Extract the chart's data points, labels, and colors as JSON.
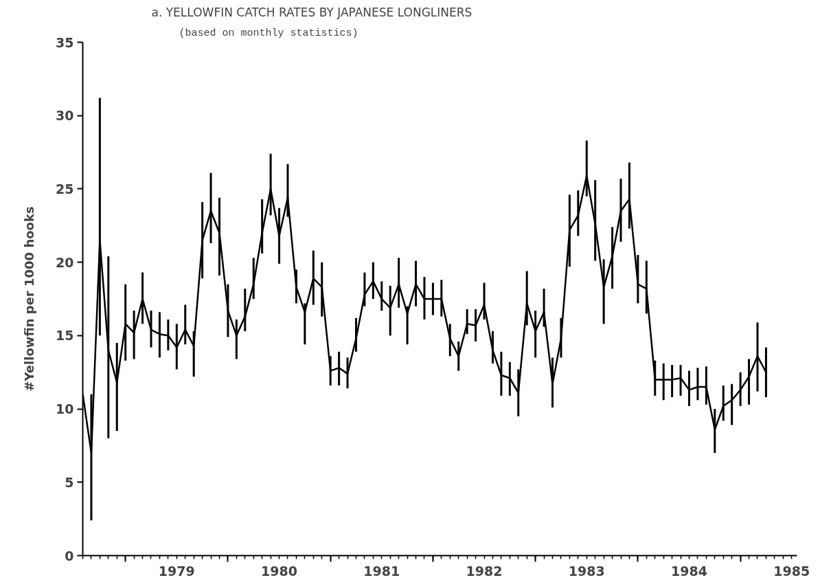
{
  "chart_data": {
    "type": "line",
    "title": "a.   YELLOWFIN CATCH RATES BY JAPANESE LONGLINERS",
    "subtitle": "(based on monthly statistics)",
    "ylabel": "#Yellowfin per 1000 hooks",
    "color": "#000000",
    "line_style": "solid",
    "x": [
      "1978-08",
      "1978-09",
      "1978-10",
      "1978-11",
      "1978-12",
      "1979-01",
      "1979-02",
      "1979-03",
      "1979-04",
      "1979-05",
      "1979-06",
      "1979-07",
      "1979-08",
      "1979-09",
      "1979-10",
      "1979-11",
      "1979-12",
      "1980-01",
      "1980-02",
      "1980-03",
      "1980-04",
      "1980-05",
      "1980-06",
      "1980-07",
      "1980-08",
      "1980-09",
      "1980-10",
      "1980-11",
      "1980-12",
      "1981-01",
      "1981-02",
      "1981-03",
      "1981-04",
      "1981-05",
      "1981-06",
      "1981-07",
      "1981-08",
      "1981-09",
      "1981-10",
      "1981-11",
      "1981-12",
      "1982-01",
      "1982-02",
      "1982-03",
      "1982-04",
      "1982-05",
      "1982-06",
      "1982-07",
      "1982-08",
      "1982-09",
      "1982-10",
      "1982-11",
      "1982-12",
      "1983-01",
      "1983-02",
      "1983-03",
      "1983-04",
      "1983-05",
      "1983-06",
      "1983-07",
      "1983-08",
      "1983-09",
      "1983-10",
      "1983-11",
      "1983-12",
      "1984-01",
      "1984-02",
      "1984-03",
      "1984-04",
      "1984-05",
      "1984-06",
      "1984-07",
      "1984-08",
      "1984-09",
      "1984-10",
      "1984-11",
      "1984-12",
      "1985-01",
      "1985-02",
      "1985-03",
      "1985-04"
    ],
    "values": [
      11.0,
      7.0,
      21.5,
      14.0,
      11.8,
      15.8,
      15.2,
      17.5,
      15.4,
      15.1,
      15.0,
      14.2,
      15.4,
      14.3,
      21.5,
      23.5,
      22.0,
      16.7,
      15.0,
      16.3,
      18.5,
      22.0,
      25.0,
      21.8,
      24.4,
      18.3,
      16.6,
      18.9,
      18.3,
      12.6,
      12.8,
      12.4,
      14.8,
      17.8,
      18.7,
      17.5,
      16.9,
      18.5,
      16.5,
      18.5,
      17.5,
      17.5,
      17.5,
      14.8,
      13.6,
      15.8,
      15.7,
      17.1,
      14.0,
      12.3,
      12.1,
      11.1,
      17.2,
      15.3,
      16.6,
      11.7,
      14.8,
      22.2,
      23.2,
      25.9,
      22.6,
      18.3,
      20.4,
      23.5,
      24.3,
      18.5,
      18.2,
      12.0,
      12.0,
      12.0,
      12.1,
      11.3,
      11.5,
      11.5,
      8.6,
      10.2,
      10.6,
      11.3,
      12.2,
      13.6,
      12.5
    ],
    "errors": [
      null,
      [
        2.4,
        11.0
      ],
      [
        15.0,
        31.2
      ],
      [
        8.0,
        20.4
      ],
      [
        8.5,
        14.5
      ],
      [
        13.3,
        18.5
      ],
      [
        13.4,
        16.7
      ],
      [
        15.8,
        19.3
      ],
      [
        14.2,
        16.7
      ],
      [
        13.5,
        16.6
      ],
      [
        14.0,
        16.1
      ],
      [
        12.7,
        15.8
      ],
      [
        14.4,
        17.1
      ],
      [
        12.2,
        15.3
      ],
      [
        18.9,
        24.1
      ],
      [
        21.3,
        26.1
      ],
      [
        19.1,
        24.4
      ],
      [
        14.9,
        18.5
      ],
      [
        13.4,
        16.1
      ],
      [
        15.3,
        18.2
      ],
      [
        17.5,
        20.3
      ],
      [
        20.6,
        24.3
      ],
      [
        23.2,
        27.4
      ],
      [
        19.9,
        23.7
      ],
      [
        23.1,
        26.7
      ],
      [
        17.2,
        19.5
      ],
      [
        14.4,
        17.2
      ],
      [
        17.1,
        20.8
      ],
      [
        16.3,
        20.0
      ],
      [
        11.6,
        13.6
      ],
      [
        11.6,
        13.9
      ],
      [
        11.4,
        13.5
      ],
      [
        13.9,
        16.2
      ],
      [
        17.0,
        19.3
      ],
      [
        17.5,
        20.0
      ],
      [
        16.7,
        18.7
      ],
      [
        15.0,
        18.4
      ],
      [
        16.9,
        20.3
      ],
      [
        14.4,
        17.0
      ],
      [
        17.0,
        20.1
      ],
      [
        16.1,
        19.0
      ],
      [
        16.4,
        18.6
      ],
      [
        16.3,
        18.8
      ],
      [
        13.6,
        15.8
      ],
      [
        12.6,
        14.6
      ],
      [
        15.1,
        16.8
      ],
      [
        14.6,
        16.8
      ],
      [
        16.1,
        18.6
      ],
      [
        13.1,
        15.3
      ],
      [
        10.9,
        13.9
      ],
      [
        10.9,
        13.2
      ],
      [
        9.5,
        12.7
      ],
      [
        15.7,
        19.4
      ],
      [
        13.5,
        16.7
      ],
      [
        15.6,
        18.2
      ],
      [
        10.1,
        13.5
      ],
      [
        13.5,
        16.2
      ],
      [
        19.7,
        24.6
      ],
      [
        21.8,
        24.9
      ],
      [
        24.5,
        28.3
      ],
      [
        20.1,
        25.6
      ],
      [
        15.8,
        20.2
      ],
      [
        18.2,
        22.4
      ],
      [
        21.4,
        25.7
      ],
      [
        22.3,
        26.8
      ],
      [
        17.2,
        20.5
      ],
      [
        16.5,
        20.1
      ],
      [
        10.9,
        13.3
      ],
      [
        10.6,
        13.1
      ],
      [
        10.8,
        13.0
      ],
      [
        10.9,
        13.0
      ],
      [
        10.2,
        12.6
      ],
      [
        10.6,
        12.8
      ],
      [
        10.3,
        12.9
      ],
      [
        7.0,
        10.0
      ],
      [
        9.2,
        11.6
      ],
      [
        8.9,
        11.7
      ],
      [
        10.2,
        12.5
      ],
      [
        10.3,
        13.4
      ],
      [
        11.2,
        15.9
      ],
      [
        10.8,
        14.2
      ]
    ],
    "xlim": [
      "1978-08",
      "1985-07-20"
    ],
    "xticks": [
      {
        "value": "1979-01",
        "label": null
      },
      {
        "value": "1980-01",
        "label": null
      },
      {
        "value": "1981-01",
        "label": null
      },
      {
        "value": "1982-01",
        "label": null
      },
      {
        "value": "1983-01",
        "label": null
      },
      {
        "value": "1984-01",
        "label": null
      },
      {
        "value": "1985-01",
        "label": null
      },
      {
        "value": "1979-07",
        "label": "1979"
      },
      {
        "value": "1980-07",
        "label": "1980"
      },
      {
        "value": "1981-07",
        "label": "1981"
      },
      {
        "value": "1982-07",
        "label": "1982"
      },
      {
        "value": "1983-07",
        "label": "1983"
      },
      {
        "value": "1984-07",
        "label": "1984"
      },
      {
        "value": "1985-07",
        "label": "1985"
      }
    ],
    "ylim": [
      0,
      35
    ],
    "yticks": [
      0,
      5,
      10,
      15,
      20,
      25,
      30,
      35
    ]
  }
}
